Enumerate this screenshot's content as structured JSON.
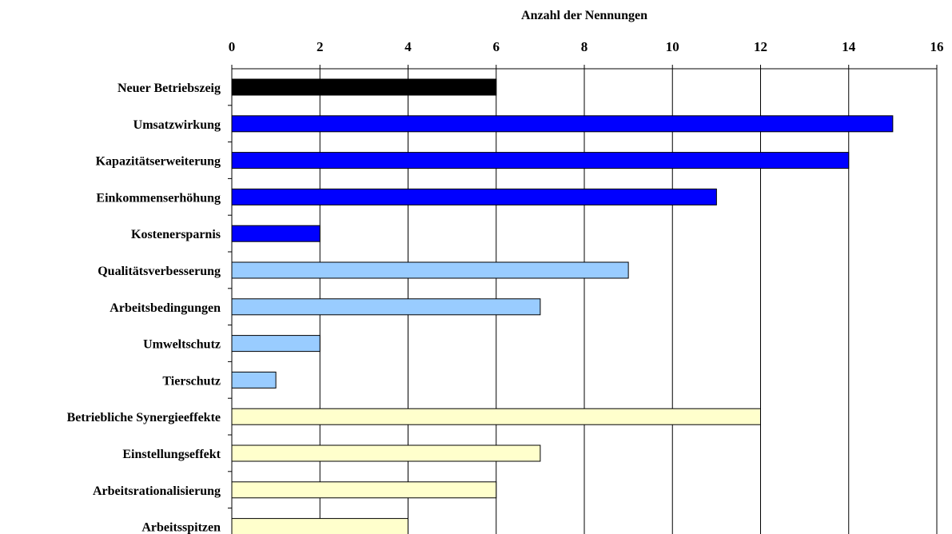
{
  "chart_data": {
    "type": "bar",
    "orientation": "horizontal",
    "title": "",
    "xlabel": "Anzahl der Nennungen",
    "ylabel": "",
    "xlim": [
      0,
      16
    ],
    "x_ticks": [
      0,
      2,
      4,
      6,
      8,
      10,
      12,
      14,
      16
    ],
    "x_axis_position": "top",
    "grid": "vertical",
    "legend": "none",
    "categories": [
      "Neuer Betriebszeig",
      "Umsatzwirkung",
      "Kapazitätserweiterung",
      "Einkommenserhöhung",
      "Kostenersparnis",
      "Qualitätsverbesserung",
      "Arbeitsbedingungen",
      "Umweltschutz",
      "Tierschutz",
      "Betriebliche Synergieeffekte",
      "Einstellungseffekt",
      "Arbeitsrationalisierung",
      "Arbeitsspitzen"
    ],
    "values": [
      6,
      15,
      14,
      11,
      2,
      9,
      7,
      2,
      1,
      12,
      7,
      6,
      4
    ],
    "bar_colors": [
      "#000000",
      "#0000ff",
      "#0000ff",
      "#0000ff",
      "#0000ff",
      "#99ccff",
      "#99ccff",
      "#99ccff",
      "#99ccff",
      "#ffffcc",
      "#ffffcc",
      "#ffffcc",
      "#ffffcc"
    ]
  }
}
